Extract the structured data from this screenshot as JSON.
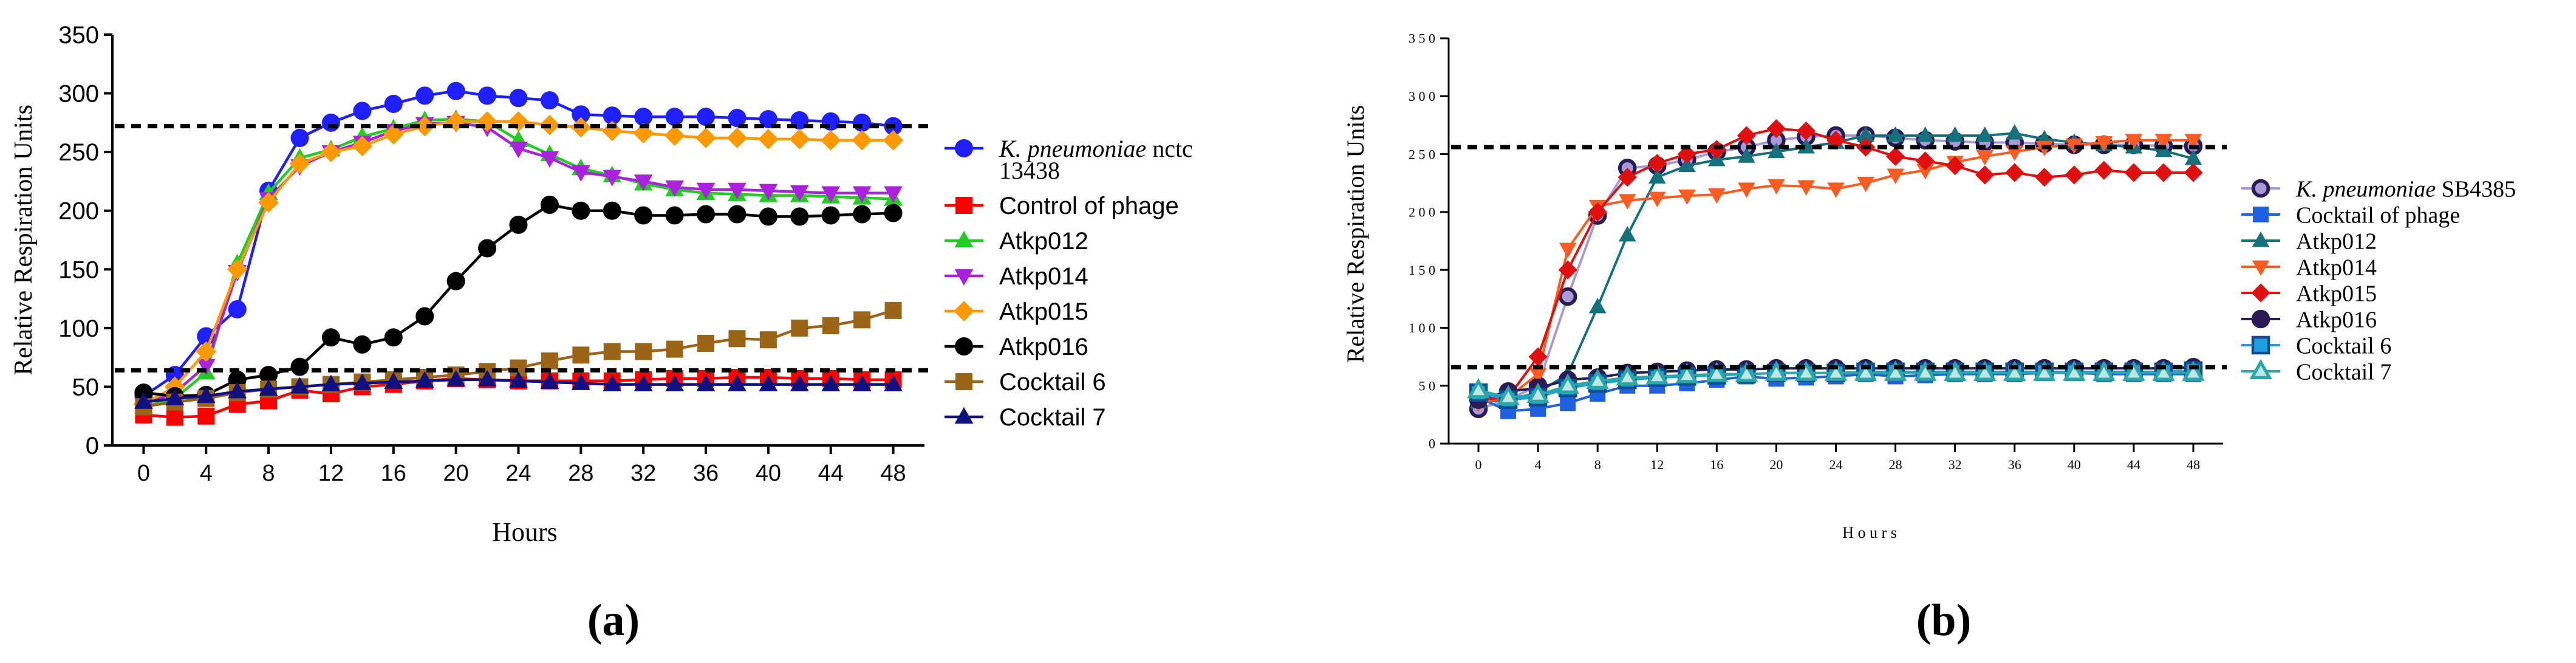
{
  "panels": [
    {
      "label_text": "(a)",
      "chart_data": {
        "type": "line",
        "title": "",
        "xlabel": "Hours",
        "ylabel": "Relative Respiration Units",
        "xlim": [
          -2,
          50
        ],
        "ylim": [
          0,
          350
        ],
        "xticks": [
          0,
          4,
          8,
          12,
          16,
          20,
          24,
          28,
          32,
          36,
          40,
          44,
          48
        ],
        "yticks": [
          0,
          50,
          100,
          150,
          200,
          250,
          300,
          350
        ],
        "xtick_labels": [
          "0",
          "4",
          "8",
          "12",
          "16",
          "20",
          "24",
          "28",
          "32",
          "36",
          "40",
          "44",
          "48"
        ],
        "ytick_labels": [
          "0",
          "50",
          "100",
          "150",
          "200",
          "250",
          "300",
          "350"
        ],
        "threshold_lines": [
          272,
          64
        ],
        "legend_position": "right",
        "x": [
          0,
          2,
          4,
          6,
          8,
          10,
          12,
          14,
          16,
          18,
          20,
          22,
          24,
          26,
          28,
          30,
          32,
          34,
          36,
          38,
          40,
          42,
          44,
          46,
          48
        ],
        "series": [
          {
            "name": "K. pneumoniae nctc 13438",
            "name_italic": "K. pneumoniae",
            "name_rest": " nctc",
            "name_line2": "13438",
            "color": "#1f1fff",
            "marker": "circle",
            "values": [
              42,
              60,
              93,
              116,
              217,
              262,
              275,
              285,
              291,
              298,
              302,
              298,
              296,
              294,
              282,
              281,
              280,
              280,
              280,
              279,
              278,
              277,
              276,
              275,
              272
            ]
          },
          {
            "name": "Control of phage",
            "color": "#ff0000",
            "marker": "square",
            "values": [
              26,
              24,
              25,
              35,
              38,
              47,
              44,
              50,
              52,
              55,
              57,
              56,
              55,
              55,
              55,
              55,
              56,
              57,
              57,
              58,
              58,
              57,
              57,
              56,
              56
            ]
          },
          {
            "name": "Atkp012",
            "color": "#22cc22",
            "marker": "triangle-up",
            "values": [
              33,
              40,
              62,
              155,
              215,
              245,
              252,
              263,
              270,
              277,
              278,
              276,
              260,
              248,
              236,
              230,
              223,
              218,
              215,
              214,
              213,
              213,
              212,
              211,
              210
            ]
          },
          {
            "name": "Atkp014",
            "color": "#aa22dd",
            "marker": "triangle-down",
            "values": [
              35,
              45,
              68,
              148,
              210,
              238,
              250,
              258,
              268,
              274,
              275,
              271,
              253,
              245,
              233,
              229,
              225,
              220,
              218,
              218,
              217,
              216,
              215,
              215,
              215
            ]
          },
          {
            "name": "Atkp015",
            "color": "#ff9900",
            "marker": "diamond",
            "values": [
              35,
              50,
              80,
              150,
              207,
              240,
              250,
              255,
              265,
              272,
              276,
              276,
              276,
              273,
              271,
              268,
              266,
              264,
              262,
              262,
              261,
              261,
              260,
              260,
              260
            ]
          },
          {
            "name": "Atkp016",
            "color": "#000000",
            "marker": "circle",
            "values": [
              45,
              42,
              43,
              56,
              60,
              67,
              92,
              86,
              92,
              110,
              140,
              168,
              188,
              205,
              200,
              200,
              196,
              196,
              197,
              197,
              195,
              195,
              196,
              197,
              198
            ]
          },
          {
            "name": "Cocktail 6",
            "color": "#9a6419",
            "marker": "square",
            "values": [
              33,
              37,
              40,
              45,
              48,
              50,
              52,
              54,
              56,
              58,
              60,
              63,
              66,
              72,
              77,
              80,
              80,
              82,
              87,
              91,
              90,
              100,
              102,
              107,
              115
            ]
          },
          {
            "name": "Cocktail 7",
            "color": "#101080",
            "marker": "triangle-up",
            "values": [
              37,
              40,
              42,
              46,
              48,
              50,
              52,
              53,
              54,
              55,
              56,
              56,
              55,
              54,
              53,
              52,
              52,
              52,
              52,
              52,
              52,
              52,
              52,
              52,
              52
            ]
          }
        ]
      }
    },
    {
      "label_text": "(b)",
      "chart_data": {
        "type": "line",
        "title": "",
        "xlabel": "Hours",
        "ylabel": "Relative Respiration Units",
        "xlim": [
          -2,
          50
        ],
        "ylim": [
          0,
          350
        ],
        "xticks": [
          0,
          4,
          8,
          12,
          16,
          20,
          24,
          28,
          32,
          36,
          40,
          44,
          48
        ],
        "yticks": [
          0,
          50,
          100,
          150,
          200,
          250,
          300,
          350
        ],
        "xtick_labels": [
          "0",
          "4",
          "8",
          "12",
          "16",
          "20",
          "24",
          "28",
          "32",
          "36",
          "40",
          "44",
          "48"
        ],
        "ytick_labels": [
          "0",
          "5 0",
          "1 0 0",
          "1 5 0",
          "2 0 0",
          "2 5 0",
          "3 0 0",
          "3 5 0"
        ],
        "xlabel_display": "H o u r s",
        "threshold_lines": [
          256,
          66
        ],
        "legend_position": "right",
        "x": [
          0,
          2,
          4,
          6,
          8,
          10,
          12,
          14,
          16,
          18,
          20,
          22,
          24,
          26,
          28,
          30,
          32,
          34,
          36,
          38,
          40,
          42,
          44,
          46,
          48
        ],
        "series": [
          {
            "name": "K. pneumoniae SB4385",
            "name_italic": "K. pneumoniae",
            "name_rest": " SB4385",
            "color": "#a89ad6",
            "marker": "circle-ring",
            "values": [
              30,
              38,
              50,
              127,
              197,
              238,
              240,
              245,
              252,
              256,
              262,
              265,
              266,
              266,
              264,
              262,
              261,
              260,
              260,
              259,
              258,
              258,
              258,
              257,
              257
            ]
          },
          {
            "name": "Cocktail of phage",
            "color": "#1f60e0",
            "marker": "square",
            "values": [
              40,
              28,
              30,
              35,
              43,
              50,
              50,
              52,
              55,
              58,
              56,
              57,
              58,
              60,
              58,
              59,
              60,
              60,
              60,
              61,
              61,
              60,
              60,
              60,
              60
            ]
          },
          {
            "name": "Atkp012",
            "color": "#14707a",
            "marker": "triangle-up",
            "values": [
              36,
              38,
              44,
              60,
              118,
              180,
              230,
              240,
              245,
              248,
              252,
              256,
              260,
              266,
              266,
              266,
              266,
              266,
              268,
              263,
              260,
              258,
              256,
              253,
              246
            ]
          },
          {
            "name": "Atkp014",
            "color": "#ff5a1f",
            "marker": "triangle-down",
            "values": [
              35,
              40,
              60,
              168,
              205,
              210,
              212,
              214,
              215,
              220,
              223,
              222,
              220,
              225,
              232,
              236,
              243,
              248,
              252,
              256,
              258,
              260,
              262,
              262,
              262
            ]
          },
          {
            "name": "Atkp015",
            "color": "#e01010",
            "marker": "diamond",
            "values": [
              38,
              40,
              75,
              150,
              200,
              230,
              242,
              250,
              254,
              266,
              272,
              270,
              262,
              256,
              248,
              244,
              240,
              232,
              234,
              230,
              232,
              236,
              234,
              234,
              234
            ]
          },
          {
            "name": "Atkp016",
            "color": "#2a1a55",
            "marker": "circle-ring",
            "values": [
              38,
              45,
              48,
              55,
              57,
              61,
              62,
              63,
              64,
              64,
              65,
              65,
              65,
              65,
              65,
              65,
              65,
              65,
              65,
              65,
              65,
              65,
              65,
              65,
              66
            ]
          },
          {
            "name": "Cocktail 6",
            "color": "#1ea0e0",
            "marker": "square-ring",
            "values": [
              44,
              38,
              40,
              48,
              52,
              55,
              57,
              58,
              59,
              60,
              61,
              61,
              61,
              62,
              62,
              62,
              62,
              62,
              62,
              62,
              62,
              62,
              62,
              62,
              63
            ]
          },
          {
            "name": "Cocktail 7",
            "color": "#2aa8a8",
            "marker": "triangle-ring",
            "values": [
              46,
              40,
              42,
              50,
              54,
              57,
              58,
              59,
              60,
              60,
              61,
              61,
              61,
              61,
              61,
              61,
              61,
              61,
              61,
              61,
              61,
              61,
              61,
              61,
              61
            ]
          }
        ]
      }
    }
  ]
}
